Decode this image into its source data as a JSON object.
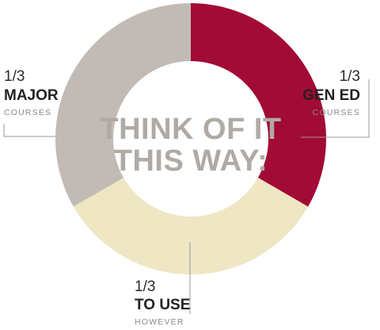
{
  "chart_data": {
    "type": "pie",
    "title": "THINK OF IT THIS WAY:",
    "title_lines": [
      "THINK OF IT",
      "THIS WAY:"
    ],
    "slices": [
      {
        "value": 1,
        "fraction": "1/3",
        "label": "GEN ED",
        "sublabel": "COURSES",
        "color": "#a20b35"
      },
      {
        "value": 1,
        "fraction": "1/3",
        "label": "TO USE",
        "sublabel": "HOWEVER",
        "color": "#efe6c4"
      },
      {
        "value": 1,
        "fraction": "1/3",
        "label": "MAJOR",
        "sublabel": "COURSES",
        "color": "#c2bbb5"
      }
    ]
  }
}
